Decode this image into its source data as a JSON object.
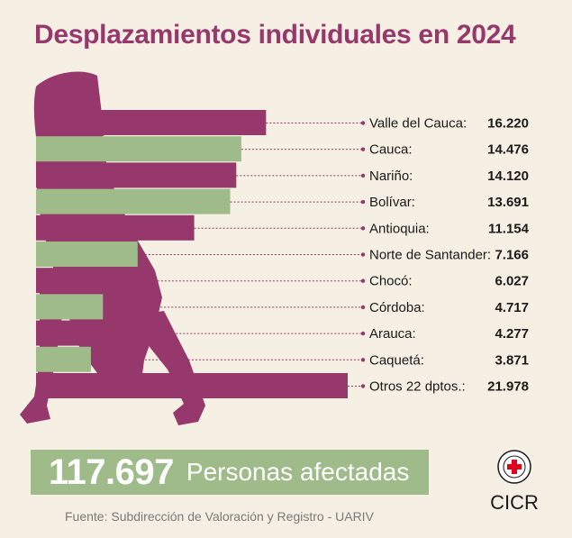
{
  "title": "Desplazamientos individuales en 2024",
  "chart_data": {
    "type": "bar",
    "orientation": "horizontal",
    "categories": [
      "Valle del Cauca:",
      "Cauca:",
      "Nariño:",
      "Bolívar:",
      "Antioquia:",
      "Norte de Santander:",
      "Chocó:",
      "Córdoba:",
      "Arauca:",
      "Caquetá:",
      "Otros 22 dptos.:"
    ],
    "values": [
      16220,
      14476,
      14120,
      13691,
      11154,
      7166,
      6027,
      4717,
      4277,
      3871,
      21978
    ],
    "value_labels": [
      "16.220",
      "14.476",
      "14.120",
      "13.691",
      "11.154",
      "7.166",
      "6.027",
      "4.717",
      "4.277",
      "3.871",
      "21.978"
    ],
    "bar_colors": [
      "#96386c",
      "#9fbb8a",
      "#96386c",
      "#9fbb8a",
      "#96386c",
      "#9fbb8a",
      "#96386c",
      "#9fbb8a",
      "#96386c",
      "#9fbb8a",
      "#96386c"
    ]
  },
  "total": {
    "number": "117.697",
    "label": "Personas afectadas"
  },
  "source": "Fuente: Subdirección de Valoración y Registro - UARIV",
  "logo": {
    "text": "CICR",
    "ring_text": "COMITÉ INTERNATIONAL GENÈVE"
  },
  "colors": {
    "primary": "#96386c",
    "secondary": "#9fbb8a",
    "background": "#f6efe4",
    "logo_red": "#e2001a"
  }
}
